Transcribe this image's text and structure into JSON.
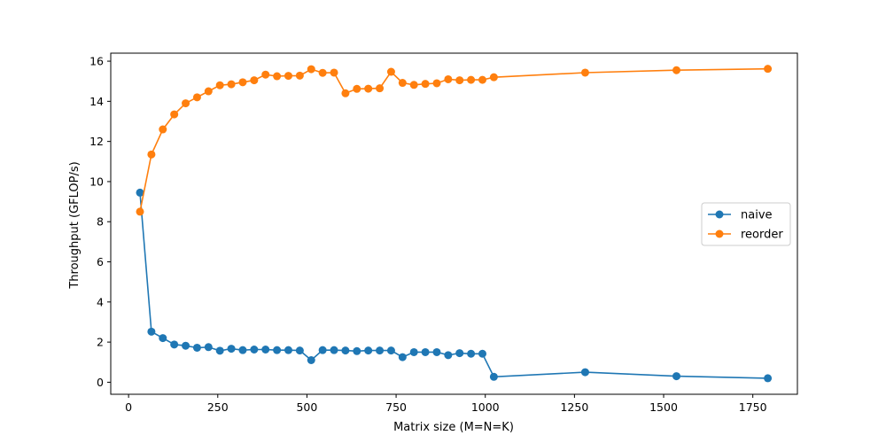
{
  "chart_data": {
    "type": "line",
    "xlabel": "Matrix size (M=N=K)",
    "ylabel": "Throughput (GFLOP/s)",
    "xlim": [
      -50,
      1875
    ],
    "ylim": [
      -0.6,
      16.4
    ],
    "xticks": [
      0,
      250,
      500,
      750,
      1000,
      1250,
      1500,
      1750
    ],
    "yticks": [
      0,
      2,
      4,
      6,
      8,
      10,
      12,
      14,
      16
    ],
    "grid": false,
    "legend_position": "center-right",
    "x": [
      32,
      64,
      96,
      128,
      160,
      192,
      224,
      256,
      288,
      320,
      352,
      384,
      416,
      448,
      480,
      512,
      544,
      576,
      608,
      640,
      672,
      704,
      736,
      768,
      800,
      832,
      864,
      896,
      928,
      960,
      992,
      1024,
      1280,
      1536,
      1792
    ],
    "series": [
      {
        "name": "naive",
        "color": "#1f77b4",
        "values": [
          9.45,
          2.52,
          2.2,
          1.88,
          1.82,
          1.72,
          1.75,
          1.57,
          1.67,
          1.6,
          1.63,
          1.63,
          1.6,
          1.6,
          1.58,
          1.1,
          1.6,
          1.6,
          1.58,
          1.55,
          1.58,
          1.58,
          1.58,
          1.25,
          1.5,
          1.5,
          1.5,
          1.35,
          1.45,
          1.42,
          1.42,
          0.27,
          0.5,
          0.3,
          0.2
        ]
      },
      {
        "name": "reorder",
        "color": "#ff7f0e",
        "values": [
          8.5,
          11.35,
          12.6,
          13.35,
          13.9,
          14.2,
          14.5,
          14.8,
          14.85,
          14.95,
          15.05,
          15.33,
          15.25,
          15.27,
          15.28,
          15.6,
          15.42,
          15.43,
          14.4,
          14.62,
          14.63,
          14.65,
          15.47,
          14.92,
          14.82,
          14.87,
          14.9,
          15.1,
          15.05,
          15.07,
          15.07,
          15.2,
          15.43,
          15.55,
          15.62
        ]
      }
    ]
  }
}
